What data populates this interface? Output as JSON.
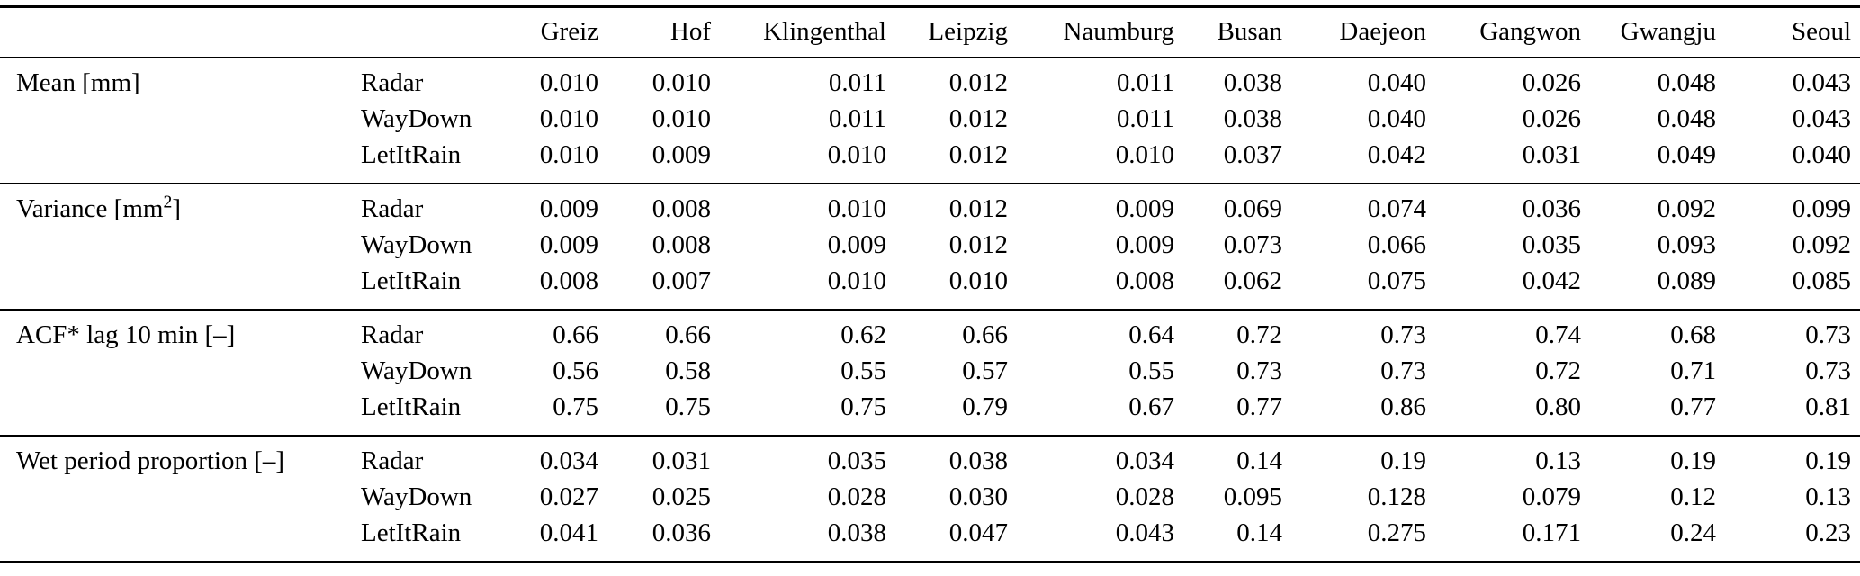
{
  "table": {
    "columns": [
      "Greiz",
      "Hof",
      "Klingenthal",
      "Leipzig",
      "Naumburg",
      "Busan",
      "Daejeon",
      "Gangwon",
      "Gwangju",
      "Seoul"
    ],
    "sections": [
      {
        "label": {
          "pre": "Mean [mm]",
          "sup": "",
          "post": ""
        },
        "rows": [
          {
            "method": "Radar",
            "values": [
              "0.010",
              "0.010",
              "0.011",
              "0.012",
              "0.011",
              "0.038",
              "0.040",
              "0.026",
              "0.048",
              "0.043"
            ]
          },
          {
            "method": "WayDown",
            "values": [
              "0.010",
              "0.010",
              "0.011",
              "0.012",
              "0.011",
              "0.038",
              "0.040",
              "0.026",
              "0.048",
              "0.043"
            ]
          },
          {
            "method": "LetItRain",
            "values": [
              "0.010",
              "0.009",
              "0.010",
              "0.012",
              "0.010",
              "0.037",
              "0.042",
              "0.031",
              "0.049",
              "0.040"
            ]
          }
        ]
      },
      {
        "label": {
          "pre": "Variance [mm",
          "sup": "2",
          "post": "]"
        },
        "rows": [
          {
            "method": "Radar",
            "values": [
              "0.009",
              "0.008",
              "0.010",
              "0.012",
              "0.009",
              "0.069",
              "0.074",
              "0.036",
              "0.092",
              "0.099"
            ]
          },
          {
            "method": "WayDown",
            "values": [
              "0.009",
              "0.008",
              "0.009",
              "0.012",
              "0.009",
              "0.073",
              "0.066",
              "0.035",
              "0.093",
              "0.092"
            ]
          },
          {
            "method": "LetItRain",
            "values": [
              "0.008",
              "0.007",
              "0.010",
              "0.010",
              "0.008",
              "0.062",
              "0.075",
              "0.042",
              "0.089",
              "0.085"
            ]
          }
        ]
      },
      {
        "label": {
          "pre": "ACF* lag 10 min [–]",
          "sup": "",
          "post": ""
        },
        "rows": [
          {
            "method": "Radar",
            "values": [
              "0.66",
              "0.66",
              "0.62",
              "0.66",
              "0.64",
              "0.72",
              "0.73",
              "0.74",
              "0.68",
              "0.73"
            ]
          },
          {
            "method": "WayDown",
            "values": [
              "0.56",
              "0.58",
              "0.55",
              "0.57",
              "0.55",
              "0.73",
              "0.73",
              "0.72",
              "0.71",
              "0.73"
            ]
          },
          {
            "method": "LetItRain",
            "values": [
              "0.75",
              "0.75",
              "0.75",
              "0.79",
              "0.67",
              "0.77",
              "0.86",
              "0.80",
              "0.77",
              "0.81"
            ]
          }
        ]
      },
      {
        "label": {
          "pre": "Wet period proportion [–]",
          "sup": "",
          "post": ""
        },
        "rows": [
          {
            "method": "Radar",
            "values": [
              "0.034",
              "0.031",
              "0.035",
              "0.038",
              "0.034",
              "0.14",
              "0.19",
              "0.13",
              "0.19",
              "0.19"
            ]
          },
          {
            "method": "WayDown",
            "values": [
              "0.027",
              "0.025",
              "0.028",
              "0.030",
              "0.028",
              "0.095",
              "0.128",
              "0.079",
              "0.12",
              "0.13"
            ]
          },
          {
            "method": "LetItRain",
            "values": [
              "0.041",
              "0.036",
              "0.038",
              "0.047",
              "0.043",
              "0.14",
              "0.275",
              "0.171",
              "0.24",
              "0.23"
            ]
          }
        ]
      }
    ],
    "colors": {
      "text": "#000000",
      "background": "#ffffff",
      "rule": "#000000"
    }
  }
}
